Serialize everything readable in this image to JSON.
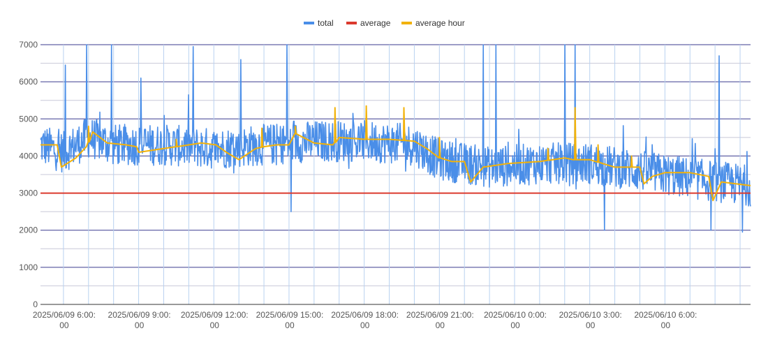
{
  "chart_data": {
    "type": "line",
    "title": "",
    "xlabel": "",
    "ylabel": "",
    "ylim": [
      0,
      7000
    ],
    "y_ticks": [
      0,
      1000,
      2000,
      3000,
      4000,
      5000,
      6000,
      7000
    ],
    "grid": true,
    "legend_position": "top-center",
    "x_range": [
      "2025-06-09T05:05",
      "2025-06-10T09:25"
    ],
    "x_tick_labels": [
      {
        "line1": "2025/06/09 6:00:",
        "line2": "00",
        "t": "2025-06-09T06:00"
      },
      {
        "line1": "2025/06/09 9:00:",
        "line2": "00",
        "t": "2025-06-09T09:00"
      },
      {
        "line1": "2025/06/09 12:00:",
        "line2": "00",
        "t": "2025-06-09T12:00"
      },
      {
        "line1": "2025/06/09 15:00:",
        "line2": "00",
        "t": "2025-06-09T15:00"
      },
      {
        "line1": "2025/06/09 18:00:",
        "line2": "00",
        "t": "2025-06-09T18:00"
      },
      {
        "line1": "2025/06/09 21:00:",
        "line2": "00",
        "t": "2025-06-09T21:00"
      },
      {
        "line1": "2025/06/10 0:00:",
        "line2": "00",
        "t": "2025-06-10T00:00"
      },
      {
        "line1": "2025/06/10 3:00:",
        "line2": "00",
        "t": "2025-06-10T03:00"
      },
      {
        "line1": "2025/06/10 6:00:",
        "line2": "00",
        "t": "2025-06-10T06:00"
      }
    ],
    "series": [
      {
        "name": "total",
        "color": "#4a8ee8",
        "sample_points": [
          [
            "2025-06-09T05:05",
            4300
          ],
          [
            "2025-06-09T06:00",
            4100
          ],
          [
            "2025-06-09T07:00",
            4500
          ],
          [
            "2025-06-09T08:00",
            4300
          ],
          [
            "2025-06-09T10:00",
            4300
          ],
          [
            "2025-06-09T12:00",
            4200
          ],
          [
            "2025-06-09T14:00",
            4300
          ],
          [
            "2025-06-09T16:00",
            4400
          ],
          [
            "2025-06-09T18:00",
            4400
          ],
          [
            "2025-06-09T20:00",
            4300
          ],
          [
            "2025-06-09T21:00",
            3900
          ],
          [
            "2025-06-09T23:00",
            3700
          ],
          [
            "2025-06-10T01:00",
            3800
          ],
          [
            "2025-06-10T03:00",
            3800
          ],
          [
            "2025-06-10T05:00",
            3600
          ],
          [
            "2025-06-10T07:00",
            3400
          ],
          [
            "2025-06-10T09:25",
            3200
          ]
        ],
        "noise_band": 700,
        "spikes": [
          [
            "2025-06-09T06:05",
            6450
          ],
          [
            "2025-06-09T06:55",
            7000
          ],
          [
            "2025-06-09T07:55",
            7000
          ],
          [
            "2025-06-09T09:05",
            6100
          ],
          [
            "2025-06-09T11:10",
            6950
          ],
          [
            "2025-06-09T13:05",
            6600
          ],
          [
            "2025-06-09T14:55",
            7000
          ],
          [
            "2025-06-09T15:05",
            2500
          ],
          [
            "2025-06-09T22:45",
            7000
          ],
          [
            "2025-06-09T23:15",
            7000
          ],
          [
            "2025-06-10T02:00",
            7000
          ],
          [
            "2025-06-10T02:25",
            7000
          ],
          [
            "2025-06-10T03:35",
            2000
          ],
          [
            "2025-06-10T08:10",
            6700
          ],
          [
            "2025-06-10T07:50",
            2000
          ],
          [
            "2025-06-10T09:05",
            1950
          ]
        ]
      },
      {
        "name": "average",
        "color": "#db3a2e",
        "value": 3000
      },
      {
        "name": "average hour",
        "color": "#f2b20a",
        "points": [
          [
            "2025-06-09T05:05",
            4300
          ],
          [
            "2025-06-09T05:45",
            4300
          ],
          [
            "2025-06-09T05:55",
            3700
          ],
          [
            "2025-06-09T06:30",
            3950
          ],
          [
            "2025-06-09T06:55",
            4250
          ],
          [
            "2025-06-09T07:10",
            4650
          ],
          [
            "2025-06-09T07:45",
            4350
          ],
          [
            "2025-06-09T08:30",
            4300
          ],
          [
            "2025-06-09T08:55",
            4250
          ],
          [
            "2025-06-09T09:00",
            4100
          ],
          [
            "2025-06-09T10:30",
            4250
          ],
          [
            "2025-06-09T11:00",
            4300
          ],
          [
            "2025-06-09T11:30",
            4350
          ],
          [
            "2025-06-09T12:05",
            4300
          ],
          [
            "2025-06-09T12:30",
            4100
          ],
          [
            "2025-06-09T13:00",
            3900
          ],
          [
            "2025-06-09T13:40",
            4200
          ],
          [
            "2025-06-09T14:00",
            4250
          ],
          [
            "2025-06-09T14:30",
            4300
          ],
          [
            "2025-06-09T15:00",
            4300
          ],
          [
            "2025-06-09T15:15",
            4600
          ],
          [
            "2025-06-09T16:00",
            4350
          ],
          [
            "2025-06-09T16:45",
            4300
          ],
          [
            "2025-06-09T17:00",
            4500
          ],
          [
            "2025-06-09T18:00",
            4450
          ],
          [
            "2025-06-09T19:00",
            4450
          ],
          [
            "2025-06-09T20:00",
            4400
          ],
          [
            "2025-06-09T20:30",
            4200
          ],
          [
            "2025-06-09T21:00",
            3950
          ],
          [
            "2025-06-09T21:30",
            3850
          ],
          [
            "2025-06-09T22:00",
            3850
          ],
          [
            "2025-06-09T22:15",
            3300
          ],
          [
            "2025-06-09T22:45",
            3700
          ],
          [
            "2025-06-09T23:45",
            3800
          ],
          [
            "2025-06-10T01:00",
            3850
          ],
          [
            "2025-06-10T02:00",
            3950
          ],
          [
            "2025-06-10T02:20",
            3900
          ],
          [
            "2025-06-10T03:00",
            3900
          ],
          [
            "2025-06-10T03:30",
            3800
          ],
          [
            "2025-06-10T04:00",
            3700
          ],
          [
            "2025-06-10T05:00",
            3700
          ],
          [
            "2025-06-10T05:10",
            3250
          ],
          [
            "2025-06-10T05:30",
            3450
          ],
          [
            "2025-06-10T06:00",
            3550
          ],
          [
            "2025-06-10T07:00",
            3550
          ],
          [
            "2025-06-10T07:45",
            3450
          ],
          [
            "2025-06-10T07:55",
            2800
          ],
          [
            "2025-06-10T08:15",
            3300
          ],
          [
            "2025-06-10T09:25",
            3200
          ]
        ],
        "spikes": [
          [
            "2025-06-09T07:00",
            4800
          ],
          [
            "2025-06-09T10:30",
            4450
          ],
          [
            "2025-06-09T13:55",
            4750
          ],
          [
            "2025-06-09T15:15",
            4800
          ],
          [
            "2025-06-09T16:50",
            5300
          ],
          [
            "2025-06-09T18:05",
            5350
          ],
          [
            "2025-06-09T19:35",
            5300
          ],
          [
            "2025-06-09T21:00",
            4500
          ],
          [
            "2025-06-10T01:20",
            4200
          ],
          [
            "2025-06-10T02:25",
            5300
          ],
          [
            "2025-06-10T03:20",
            4300
          ],
          [
            "2025-06-10T04:40",
            4000
          ]
        ]
      }
    ]
  }
}
